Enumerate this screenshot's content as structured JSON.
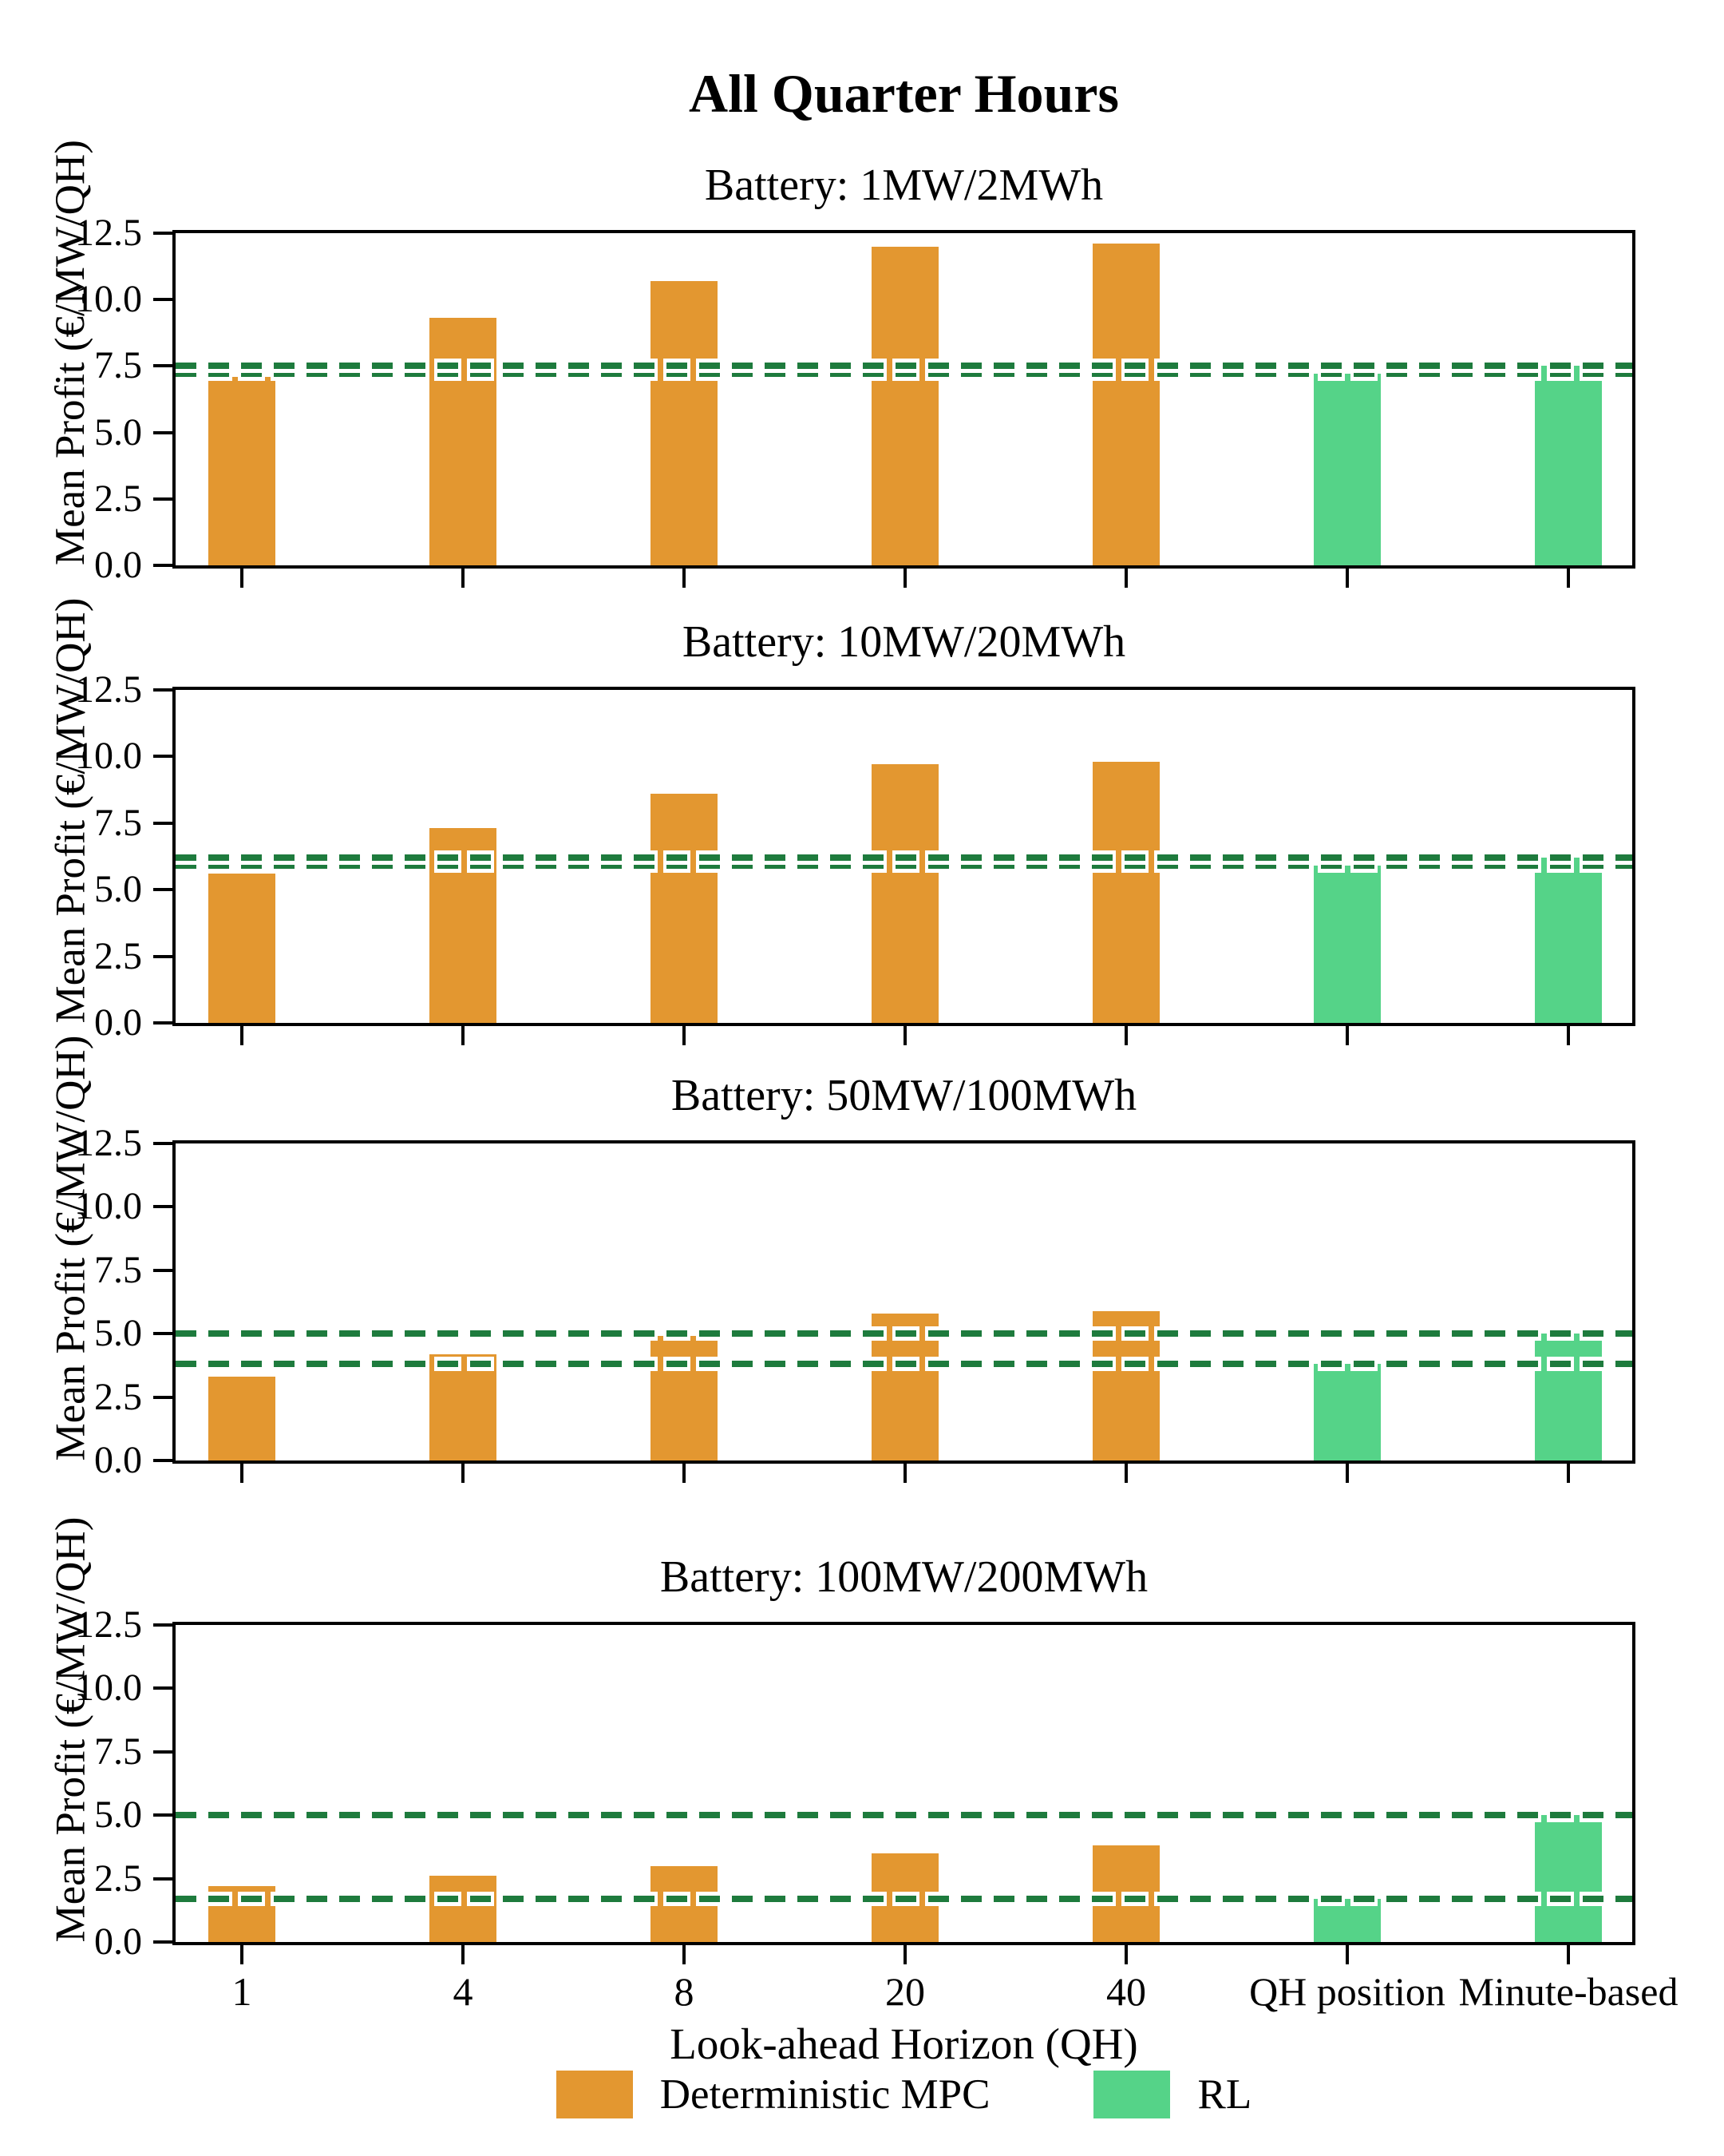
{
  "suptitle": "All Quarter Hours",
  "xlabel": "Look-ahead Horizon (QH)",
  "ylabel": "Mean Profit (€/MW/QH)",
  "colors": {
    "mpc": "#E39730",
    "rl": "#55D388",
    "dashed": "#1E7B3D",
    "axis": "#000000"
  },
  "legend": {
    "items": [
      {
        "label": "Deterministic MPC",
        "color": "#E39730"
      },
      {
        "label": "RL",
        "color": "#55D388"
      }
    ]
  },
  "chart_data": [
    {
      "type": "bar",
      "title": "Battery: 1MW/2MWh",
      "categories": [
        "1",
        "4",
        "8",
        "20",
        "40",
        "QH position",
        "Minute-based"
      ],
      "series": [
        {
          "name": "Deterministic MPC",
          "values": [
            7.1,
            9.3,
            10.7,
            12.0,
            12.1,
            null,
            null
          ]
        },
        {
          "name": "RL",
          "values": [
            null,
            null,
            null,
            null,
            null,
            7.2,
            7.5
          ]
        }
      ],
      "hlines": [
        7.2,
        7.5
      ],
      "ylabel": "Mean Profit (€/MW/QH)",
      "ylim": [
        0,
        12.5
      ],
      "yticks": [
        0.0,
        2.5,
        5.0,
        7.5,
        10.0,
        12.5
      ],
      "grid": false
    },
    {
      "type": "bar",
      "title": "Battery: 10MW/20MWh",
      "categories": [
        "1",
        "4",
        "8",
        "20",
        "40",
        "QH position",
        "Minute-based"
      ],
      "series": [
        {
          "name": "Deterministic MPC",
          "values": [
            5.6,
            7.3,
            8.6,
            9.7,
            9.8,
            null,
            null
          ]
        },
        {
          "name": "RL",
          "values": [
            null,
            null,
            null,
            null,
            null,
            5.9,
            6.2
          ]
        }
      ],
      "hlines": [
        5.9,
        6.2
      ],
      "ylabel": "Mean Profit (€/MW/QH)",
      "ylim": [
        0,
        12.5
      ],
      "yticks": [
        0.0,
        2.5,
        5.0,
        7.5,
        10.0,
        12.5
      ],
      "grid": false
    },
    {
      "type": "bar",
      "title": "Battery: 50MW/100MWh",
      "categories": [
        "1",
        "4",
        "8",
        "20",
        "40",
        "QH position",
        "Minute-based"
      ],
      "series": [
        {
          "name": "Deterministic MPC",
          "values": [
            3.3,
            4.2,
            4.9,
            5.8,
            5.9,
            null,
            null
          ]
        },
        {
          "name": "RL",
          "values": [
            null,
            null,
            null,
            null,
            null,
            3.8,
            5.0
          ]
        }
      ],
      "hlines": [
        3.8,
        5.0
      ],
      "ylabel": "Mean Profit (€/MW/QH)",
      "ylim": [
        0,
        12.5
      ],
      "yticks": [
        0.0,
        2.5,
        5.0,
        7.5,
        10.0,
        12.5
      ],
      "grid": false
    },
    {
      "type": "bar",
      "title": "Battery: 100MW/200MWh",
      "categories": [
        "1",
        "4",
        "8",
        "20",
        "40",
        "QH position",
        "Minute-based"
      ],
      "series": [
        {
          "name": "Deterministic MPC",
          "values": [
            2.2,
            2.6,
            3.0,
            3.5,
            3.8,
            null,
            null
          ]
        },
        {
          "name": "RL",
          "values": [
            null,
            null,
            null,
            null,
            null,
            1.7,
            5.0
          ]
        }
      ],
      "hlines": [
        1.7,
        5.0
      ],
      "ylabel": "Mean Profit (€/MW/QH)",
      "ylim": [
        0,
        12.5
      ],
      "yticks": [
        0.0,
        2.5,
        5.0,
        7.5,
        10.0,
        12.5
      ],
      "grid": false
    }
  ]
}
